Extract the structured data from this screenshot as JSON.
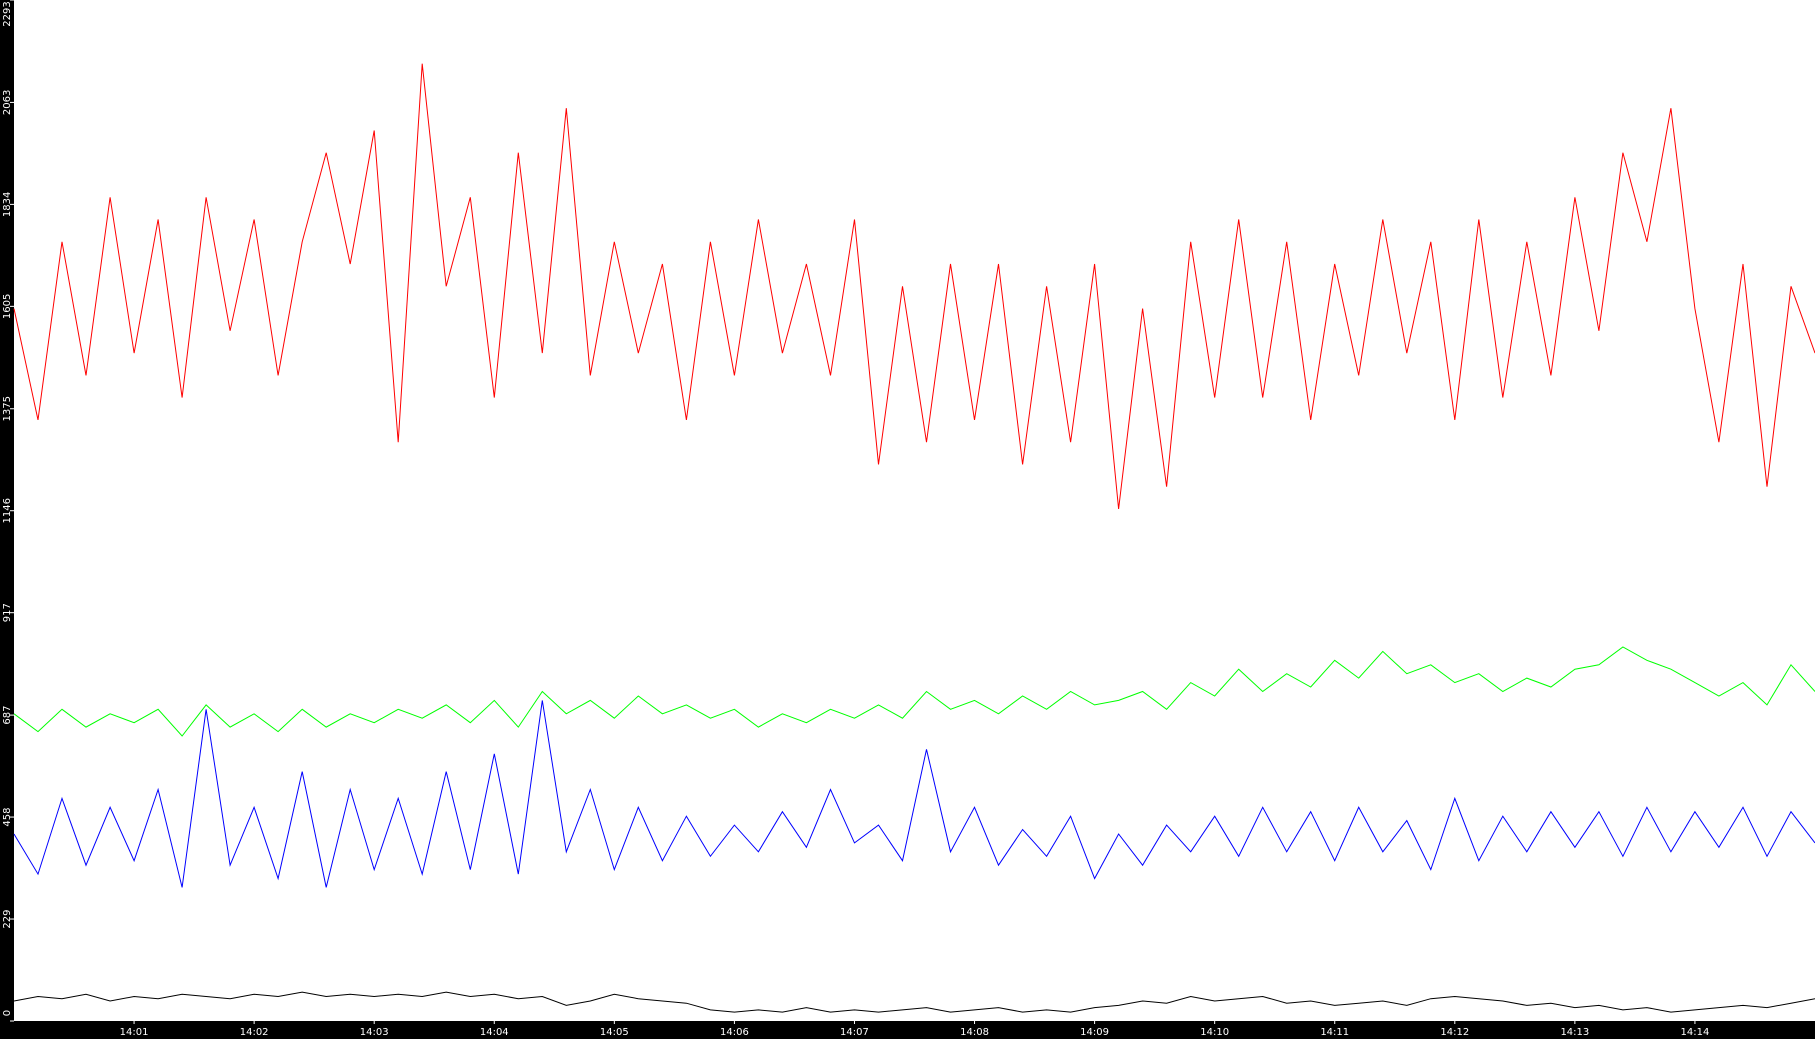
{
  "chart_data": {
    "type": "line",
    "x": [
      0,
      0.2,
      0.4,
      0.6,
      0.8,
      1,
      1.2,
      1.4,
      1.6,
      1.8,
      2,
      2.2,
      2.4,
      2.6,
      2.8,
      3,
      3.2,
      3.4,
      3.6,
      3.8,
      4,
      4.2,
      4.4,
      4.6,
      4.8,
      5,
      5.2,
      5.4,
      5.6,
      5.8,
      6,
      6.2,
      6.4,
      6.6,
      6.8,
      7,
      7.2,
      7.4,
      7.6,
      7.8,
      8,
      8.2,
      8.4,
      8.6,
      8.8,
      9,
      9.2,
      9.4,
      9.6,
      9.8,
      10,
      10.2,
      10.4,
      10.6,
      10.8,
      11,
      11.2,
      11.4,
      11.6,
      11.8,
      12,
      12.2,
      12.4,
      12.6,
      12.8,
      13,
      13.2,
      13.4,
      13.6,
      13.8,
      14,
      14.2,
      14.4,
      14.6,
      14.8,
      15
    ],
    "xlim": [
      0,
      15
    ],
    "xticks": [
      {
        "value": 1,
        "label": "14:01"
      },
      {
        "value": 2,
        "label": "14:02"
      },
      {
        "value": 3,
        "label": "14:03"
      },
      {
        "value": 4,
        "label": "14:04"
      },
      {
        "value": 5,
        "label": "14:05"
      },
      {
        "value": 6,
        "label": "14:06"
      },
      {
        "value": 7,
        "label": "14:07"
      },
      {
        "value": 8,
        "label": "14:08"
      },
      {
        "value": 9,
        "label": "14:09"
      },
      {
        "value": 10,
        "label": "14:10"
      },
      {
        "value": 11,
        "label": "14:11"
      },
      {
        "value": 12,
        "label": "14:12"
      },
      {
        "value": 13,
        "label": "14:13"
      },
      {
        "value": 14,
        "label": "14:14"
      }
    ],
    "ylim": [
      0,
      2293
    ],
    "yticks": [
      0,
      229,
      458,
      687,
      917,
      1146,
      1375,
      1605,
      1834,
      2063,
      2293
    ],
    "series": [
      {
        "color": "#ff0000",
        "values": [
          1600,
          1350,
          1750,
          1450,
          1850,
          1500,
          1800,
          1400,
          1850,
          1550,
          1800,
          1450,
          1750,
          1950,
          1700,
          2000,
          1300,
          2150,
          1650,
          1850,
          1400,
          1950,
          1500,
          2050,
          1450,
          1750,
          1500,
          1700,
          1350,
          1750,
          1450,
          1800,
          1500,
          1700,
          1450,
          1800,
          1250,
          1650,
          1300,
          1700,
          1350,
          1700,
          1250,
          1650,
          1300,
          1700,
          1150,
          1600,
          1200,
          1750,
          1400,
          1800,
          1400,
          1750,
          1350,
          1700,
          1450,
          1800,
          1500,
          1750,
          1350,
          1800,
          1400,
          1750,
          1450,
          1850,
          1550,
          1950,
          1750,
          2050,
          1600,
          1300,
          1700,
          1200,
          1650,
          1500
        ]
      },
      {
        "color": "#00ff00",
        "values": [
          690,
          650,
          700,
          660,
          690,
          670,
          700,
          640,
          710,
          660,
          690,
          650,
          700,
          660,
          690,
          670,
          700,
          680,
          710,
          670,
          720,
          660,
          740,
          690,
          720,
          680,
          730,
          690,
          710,
          680,
          700,
          660,
          690,
          670,
          700,
          680,
          710,
          680,
          740,
          700,
          720,
          690,
          730,
          700,
          740,
          710,
          720,
          740,
          700,
          760,
          730,
          790,
          740,
          780,
          750,
          810,
          770,
          830,
          780,
          800,
          760,
          780,
          740,
          770,
          750,
          790,
          800,
          840,
          810,
          790,
          760,
          730,
          760,
          710,
          800,
          740
        ]
      },
      {
        "color": "#0000ff",
        "values": [
          420,
          330,
          500,
          350,
          480,
          360,
          520,
          300,
          700,
          350,
          480,
          320,
          560,
          300,
          520,
          340,
          500,
          330,
          560,
          340,
          600,
          330,
          720,
          380,
          520,
          340,
          480,
          360,
          460,
          370,
          440,
          380,
          470,
          390,
          520,
          400,
          440,
          360,
          610,
          380,
          480,
          350,
          430,
          370,
          460,
          320,
          420,
          350,
          440,
          380,
          460,
          370,
          480,
          380,
          470,
          360,
          480,
          380,
          450,
          340,
          500,
          360,
          460,
          380,
          470,
          390,
          470,
          370,
          480,
          380,
          470,
          390,
          480,
          370,
          470,
          400
        ]
      },
      {
        "color": "#000000",
        "values": [
          45,
          55,
          50,
          60,
          45,
          55,
          50,
          60,
          55,
          50,
          60,
          55,
          65,
          55,
          60,
          55,
          60,
          55,
          65,
          55,
          60,
          50,
          55,
          35,
          45,
          60,
          50,
          45,
          40,
          25,
          20,
          25,
          20,
          30,
          20,
          25,
          20,
          25,
          30,
          20,
          25,
          30,
          20,
          25,
          20,
          30,
          35,
          45,
          40,
          55,
          45,
          50,
          55,
          40,
          45,
          35,
          40,
          45,
          35,
          50,
          55,
          50,
          45,
          35,
          40,
          30,
          35,
          25,
          30,
          20,
          25,
          30,
          35,
          30,
          40,
          50
        ]
      }
    ]
  }
}
